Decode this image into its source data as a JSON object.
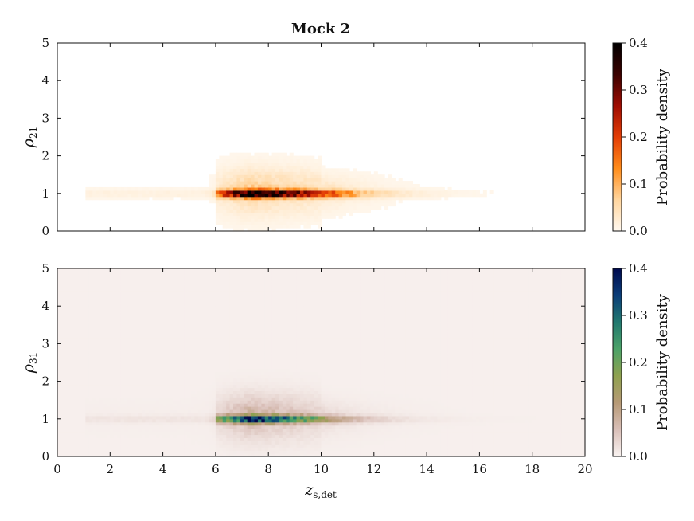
{
  "chart_data": [
    {
      "type": "heatmap",
      "title": "Mock 2",
      "xlabel": "",
      "ylabel": "ρ",
      "ylabel_sub": "21",
      "xlim": [
        0,
        20
      ],
      "ylim": [
        0,
        5
      ],
      "x_ticks": [
        "0",
        "2",
        "4",
        "6",
        "8",
        "10",
        "12",
        "14",
        "16",
        "18",
        "20"
      ],
      "y_ticks": [
        "0",
        "1",
        "2",
        "3",
        "4",
        "5"
      ],
      "x_tick_labels_shown": false,
      "colormap": "gist_heat_r",
      "colorbar": {
        "label": "Probability density",
        "range": [
          0.0,
          0.4
        ],
        "ticks": [
          "0.0",
          "0.1",
          "0.2",
          "0.3",
          "0.4"
        ],
        "stops": [
          "#fff8ef",
          "#ffd59e",
          "#ff8c1a",
          "#e33d06",
          "#9e0c02",
          "#3a0100",
          "#000000"
        ]
      },
      "density_model": {
        "core": {
          "x_range": [
            6.0,
            10.5
          ],
          "peak_x": 7.3,
          "peak_y": 1.0,
          "max_density": 0.4
        },
        "tail": {
          "x_range": [
            1.0,
            16.5
          ]
        },
        "background": 0.0
      }
    },
    {
      "type": "heatmap",
      "title": "",
      "xlabel": "z",
      "xlabel_sub": "s,det",
      "ylabel": "ρ",
      "ylabel_sub": "31",
      "xlim": [
        0,
        20
      ],
      "ylim": [
        0,
        5
      ],
      "x_ticks": [
        "0",
        "2",
        "4",
        "6",
        "8",
        "10",
        "12",
        "14",
        "16",
        "18",
        "20"
      ],
      "y_ticks": [
        "0",
        "1",
        "2",
        "3",
        "4",
        "5"
      ],
      "x_tick_labels_shown": true,
      "colormap": "gist_earth_r",
      "colorbar": {
        "label": "Probability density",
        "range": [
          0.0,
          0.4
        ],
        "ticks": [
          "0.0",
          "0.1",
          "0.2",
          "0.3",
          "0.4"
        ],
        "stops": [
          "#f9f3f1",
          "#d9bfb8",
          "#b79a76",
          "#8fa14f",
          "#4ca268",
          "#21786f",
          "#0b3d78",
          "#000a4d"
        ]
      },
      "density_model": {
        "core": {
          "x_range": [
            6.0,
            9.8
          ],
          "peak_x": 7.3,
          "peak_y": 1.0,
          "max_density": 0.4
        },
        "tail": {
          "x_range": [
            1.0,
            15.0
          ]
        },
        "background": 0.004
      }
    }
  ]
}
